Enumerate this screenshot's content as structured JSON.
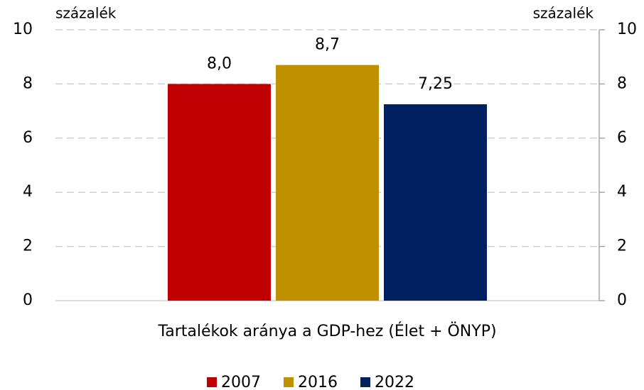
{
  "chart_data": {
    "type": "bar",
    "categories": [
      "Tartalékok aránya a GDP-hez (Élet + ÖNYP)"
    ],
    "series": [
      {
        "name": "2007",
        "color": "#c00000",
        "values": [
          8
        ],
        "value_labels": [
          "8,0"
        ]
      },
      {
        "name": "2016",
        "color": "#bf9000",
        "values": [
          8.7
        ],
        "value_labels": [
          "8,7"
        ]
      },
      {
        "name": "2022",
        "color": "#002060",
        "values": [
          7.25
        ],
        "value_labels": [
          "7,25"
        ]
      }
    ],
    "ylabel": "százalék",
    "y2label": "százalék",
    "ylim": [
      0,
      10
    ],
    "yticks": [
      0,
      2,
      4,
      6,
      8,
      10
    ],
    "y2lim": [
      0,
      10
    ],
    "y2ticks": [
      0,
      2,
      4,
      6,
      8,
      10
    ],
    "grid": true,
    "legend": "bottom"
  }
}
